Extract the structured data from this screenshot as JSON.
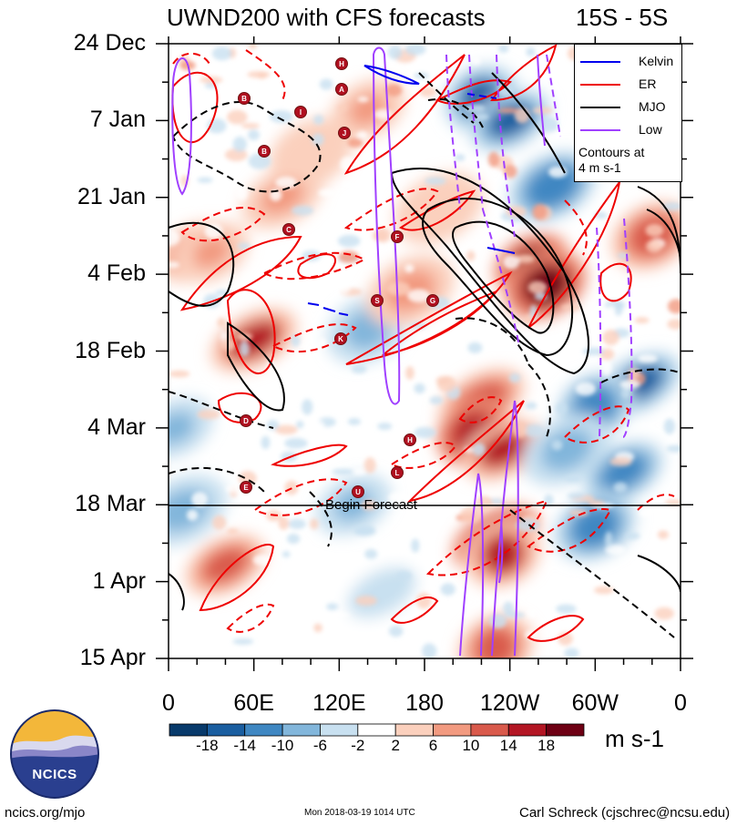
{
  "title": {
    "main": "UWND200 with CFS forecasts",
    "region": "15S - 5S"
  },
  "colors": {
    "kelvin": "#0000ee",
    "er": "#ee0000",
    "mjo": "#000000",
    "low": "#a040ff",
    "colorbar": [
      "#083a6b",
      "#1a5ea0",
      "#3f87c2",
      "#82b6db",
      "#c8e0f0",
      "#ffffff",
      "#fbd0bd",
      "#f29a80",
      "#d95a4c",
      "#b31624",
      "#6e0014"
    ]
  },
  "legend": {
    "items": [
      {
        "label": "Kelvin",
        "color": "#0000ee"
      },
      {
        "label": "ER",
        "color": "#ee0000"
      },
      {
        "label": "MJO",
        "color": "#000000"
      },
      {
        "label": "Low",
        "color": "#a040ff"
      }
    ],
    "note_line1": "Contours at",
    "note_line2": "4 m s-1"
  },
  "annotations": {
    "begin_forecast": "Begin Forecast"
  },
  "colorbar": {
    "labels": [
      "-18",
      "-14",
      "-10",
      "-6",
      "-2",
      "2",
      "6",
      "10",
      "14",
      "18"
    ],
    "units": "m s-1"
  },
  "footer": {
    "left": "ncics.org/mjo",
    "middle": "Mon 2018-03-19 1014 UTC",
    "right": "Carl Schreck (cjschrec@ncsu.edu)"
  },
  "logo": {
    "text": "NCICS"
  },
  "storms": [
    "H",
    "B",
    "A",
    "I",
    "J",
    "B",
    "C",
    "F",
    "S",
    "G",
    "K",
    "D",
    "H",
    "L",
    "E",
    "U"
  ],
  "chart_data": {
    "type": "heatmap",
    "title": "UWND200 with CFS forecasts",
    "subtitle": "15S - 5S",
    "xlabel": "",
    "ylabel": "",
    "x_ticks": [
      "0",
      "60E",
      "120E",
      "180",
      "120W",
      "60W",
      "0"
    ],
    "x_range": [
      0,
      360
    ],
    "y_ticks": [
      "24 Dec",
      "7 Jan",
      "21 Jan",
      "4 Feb",
      "18 Feb",
      "4 Mar",
      "18 Mar",
      "1 Apr",
      "15 Apr"
    ],
    "y_range_days": [
      0,
      112
    ],
    "forecast_start": "18 Mar",
    "contour_interval": "4 m s-1",
    "series": [
      {
        "name": "Kelvin",
        "color": "#0000ee"
      },
      {
        "name": "ER",
        "color": "#ee0000"
      },
      {
        "name": "MJO",
        "color": "#000000"
      },
      {
        "name": "Low",
        "color": "#a040ff"
      }
    ],
    "color_levels": [
      -18,
      -14,
      -10,
      -6,
      -2,
      2,
      6,
      10,
      14,
      18
    ],
    "blobs": [
      {
        "lon": 18,
        "day": 38,
        "value": 16
      },
      {
        "lon": 140,
        "day": 52,
        "value": -6
      },
      {
        "lon": 60,
        "day": 54,
        "value": 16
      },
      {
        "lon": 220,
        "day": 10,
        "value": -16
      },
      {
        "lon": 240,
        "day": 14,
        "value": -14
      },
      {
        "lon": 270,
        "day": 26,
        "value": -12
      },
      {
        "lon": 255,
        "day": 40,
        "value": 22
      },
      {
        "lon": 265,
        "day": 44,
        "value": 20
      },
      {
        "lon": 220,
        "day": 65,
        "value": 14
      },
      {
        "lon": 215,
        "day": 71,
        "value": 18
      },
      {
        "lon": 235,
        "day": 74,
        "value": 16
      },
      {
        "lon": 170,
        "day": 45,
        "value": 8
      },
      {
        "lon": 30,
        "day": 38,
        "value": 10
      },
      {
        "lon": 340,
        "day": 35,
        "value": 14
      },
      {
        "lon": 330,
        "day": 62,
        "value": -14
      },
      {
        "lon": 300,
        "day": 66,
        "value": -12
      },
      {
        "lon": 320,
        "day": 78,
        "value": -12
      },
      {
        "lon": 280,
        "day": 74,
        "value": -6
      },
      {
        "lon": 140,
        "day": 12,
        "value": 8
      },
      {
        "lon": 100,
        "day": 20,
        "value": 6
      },
      {
        "lon": 230,
        "day": 90,
        "value": 20
      },
      {
        "lon": 235,
        "day": 93,
        "value": 16
      },
      {
        "lon": 40,
        "day": 95,
        "value": 12
      },
      {
        "lon": 10,
        "day": 85,
        "value": -8
      },
      {
        "lon": 130,
        "day": 84,
        "value": -6
      },
      {
        "lon": 300,
        "day": 88,
        "value": -10
      },
      {
        "lon": 150,
        "day": 100,
        "value": -4
      },
      {
        "lon": 230,
        "day": 110,
        "value": 14
      },
      {
        "lon": 80,
        "day": 28,
        "value": 8
      },
      {
        "lon": 190,
        "day": 30,
        "value": 6
      },
      {
        "lon": 5,
        "day": 70,
        "value": -8
      }
    ]
  }
}
